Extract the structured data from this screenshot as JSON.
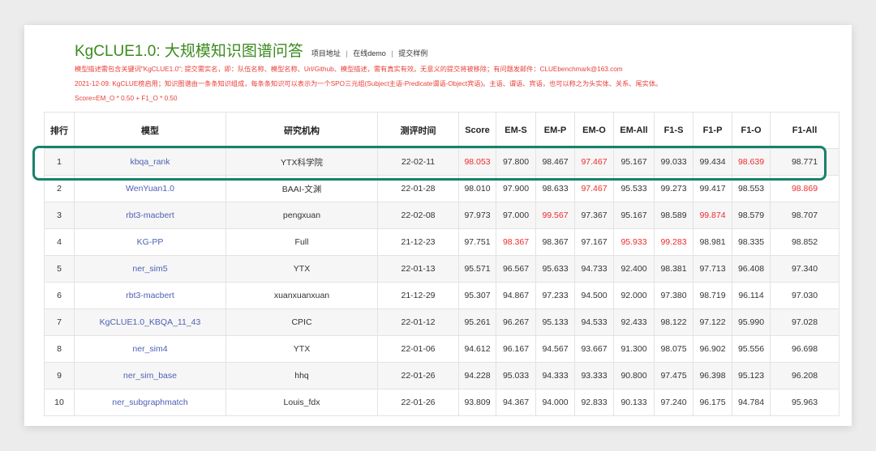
{
  "header": {
    "title": "KgCLUE1.0: 大规模知识图谱问答",
    "links": [
      "项目地址",
      "在线demo",
      "提交样例"
    ],
    "separator": "|",
    "notes": [
      "模型描述需包含关键词\"KgCLUE1.0\"; 提交需实名，即：队伍名称、模型名称、Url/Github、模型描述，需有真实有效。无意义的提交将被移除；有问题发邮件：CLUEbenchmark@163.com",
      "2021-12-09: KgCLUE榜启用；知识图谱由一条条知识组成，每条条知识可以表示为一个SPO三元组(Subject主语-Predicate谓语-Object宾语)。主语、谓语、宾语，也可以称之为头实体、关系、尾实体。",
      "Score=EM_O * 0.50 + F1_O * 0.50"
    ]
  },
  "table": {
    "columns": [
      "排行",
      "模型",
      "研究机构",
      "测评时间",
      "Score",
      "EM-S",
      "EM-P",
      "EM-O",
      "EM-All",
      "F1-S",
      "F1-P",
      "F1-O",
      "F1-All"
    ],
    "rows": [
      [
        "1",
        "kbqa_rank",
        "YTX科学院",
        "22-02-11",
        "98.053",
        "97.800",
        "98.467",
        "97.467",
        "95.167",
        "99.033",
        "99.434",
        "98.639",
        "98.771"
      ],
      [
        "2",
        "WenYuan1.0",
        "BAAI-文渊",
        "22-01-28",
        "98.010",
        "97.900",
        "98.633",
        "97.467",
        "95.533",
        "99.273",
        "99.417",
        "98.553",
        "98.869"
      ],
      [
        "3",
        "rbt3-macbert",
        "pengxuan",
        "22-02-08",
        "97.973",
        "97.000",
        "99.567",
        "97.367",
        "95.167",
        "98.589",
        "99.874",
        "98.579",
        "98.707"
      ],
      [
        "4",
        "KG-PP",
        "Full",
        "21-12-23",
        "97.751",
        "98.367",
        "98.367",
        "97.167",
        "95.933",
        "99.283",
        "98.981",
        "98.335",
        "98.852"
      ],
      [
        "5",
        "ner_sim5",
        "YTX",
        "22-01-13",
        "95.571",
        "96.567",
        "95.633",
        "94.733",
        "92.400",
        "98.381",
        "97.713",
        "96.408",
        "97.340"
      ],
      [
        "6",
        "rbt3-macbert",
        "xuanxuanxuan",
        "21-12-29",
        "95.307",
        "94.867",
        "97.233",
        "94.500",
        "92.000",
        "97.380",
        "98.719",
        "96.114",
        "97.030"
      ],
      [
        "7",
        "KgCLUE1.0_KBQA_11_43",
        "CPIC",
        "22-01-12",
        "95.261",
        "96.267",
        "95.133",
        "94.533",
        "92.433",
        "98.122",
        "97.122",
        "95.990",
        "97.028"
      ],
      [
        "8",
        "ner_sim4",
        "YTX",
        "22-01-06",
        "94.612",
        "96.167",
        "94.567",
        "93.667",
        "91.300",
        "98.075",
        "96.902",
        "95.556",
        "96.698"
      ],
      [
        "9",
        "ner_sim_base",
        "hhq",
        "22-01-26",
        "94.228",
        "95.033",
        "94.333",
        "93.333",
        "90.800",
        "97.475",
        "96.398",
        "95.123",
        "96.208"
      ],
      [
        "10",
        "ner_subgraphmatch",
        "Louis_fdx",
        "22-01-26",
        "93.809",
        "94.367",
        "94.000",
        "92.833",
        "90.133",
        "97.240",
        "96.175",
        "94.784",
        "95.963"
      ]
    ],
    "highlighted_cells": [
      [
        0,
        4
      ],
      [
        0,
        7
      ],
      [
        0,
        11
      ],
      [
        1,
        7
      ],
      [
        1,
        12
      ],
      [
        2,
        6
      ],
      [
        2,
        10
      ],
      [
        3,
        5
      ],
      [
        3,
        8
      ],
      [
        3,
        9
      ]
    ]
  },
  "colors": {
    "title": "#3b8a1f",
    "note_red": "#e8413a",
    "best_value_red": "#ee2b2b",
    "model_link": "#4d5fb5",
    "highlight_box": "#17826a"
  }
}
